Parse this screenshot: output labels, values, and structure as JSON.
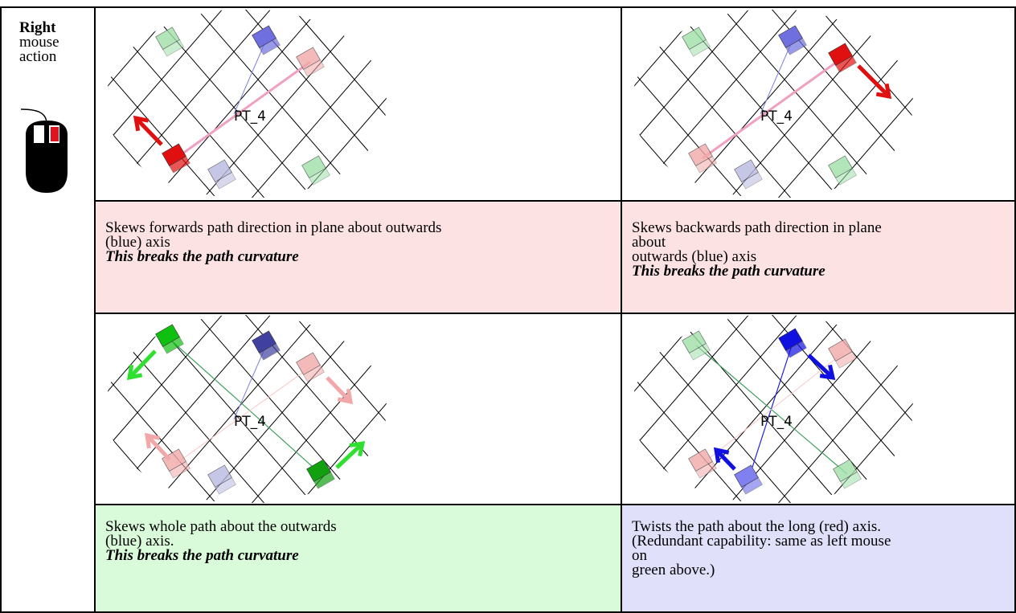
{
  "sidebar": {
    "lines": [
      "Right",
      "mouse",
      "action"
    ]
  },
  "rows": [
    {
      "images": [
        {
          "label": "PT_4"
        },
        {
          "label": "PT_4"
        }
      ],
      "cells": [
        {
          "lines": [
            "Skews forwards path direction in plane about outwards",
            "(blue) axis"
          ],
          "emphasis": "This breaks the path curvature"
        },
        {
          "lines": [
            "Skews backwards path direction in plane",
            "about",
            "outwards (blue) axis"
          ],
          "emphasis": "This breaks the path curvature"
        }
      ]
    },
    {
      "images": [
        {
          "label": "PT_4"
        },
        {
          "label": "PT_4"
        }
      ],
      "cells": [
        {
          "lines": [
            "Skews whole path about the outwards",
            "(blue) axis."
          ],
          "emphasis": "This breaks the path curvature"
        },
        {
          "lines": [
            "Twists the path about the long (red) axis.",
            "(Redundant capability: same as left mouse",
            "on",
            "green above.)"
          ]
        }
      ]
    }
  ]
}
